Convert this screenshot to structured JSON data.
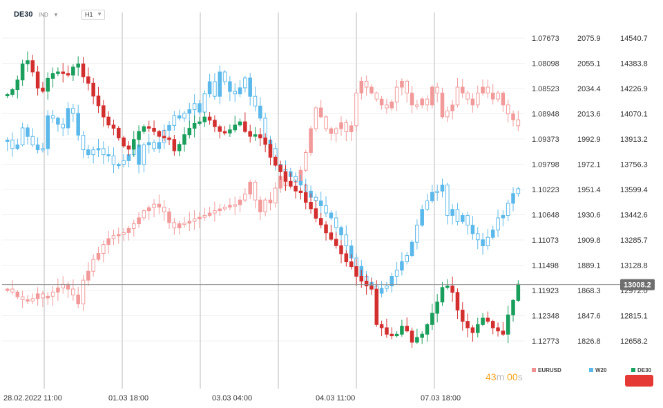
{
  "header": {
    "symbol": "DE30",
    "mode": "IND",
    "timeframe": "H1"
  },
  "timer": {
    "minutes": "43",
    "minutes_unit": "m",
    "seconds": "00",
    "seconds_unit": "s"
  },
  "legend": [
    {
      "name": "EURUSD",
      "color": "#f09090"
    },
    {
      "name": "W20",
      "color": "#5bb8ea"
    },
    {
      "name": "DE30",
      "color": "#1aa260"
    }
  ],
  "colors": {
    "de30_up": "#1a9e5c",
    "de30_down": "#d32f2f",
    "w20": "#5bb8ea",
    "eurusd": "#f29a9a",
    "current_price_bg": "#6e6e6e",
    "alert_button": "#e53935"
  },
  "chart_data": {
    "type": "candlestick",
    "xlabel": "",
    "x_tick_labels": [
      "28.02.2022  11:00",
      "01.03  18:00",
      "03.03  04:00",
      "04.03  11:00",
      "07.03  18:00"
    ],
    "axes": {
      "EURUSD": {
        "inverted": true,
        "range": [
          1.07673,
          1.12773
        ],
        "tick_labels": [
          "1.07673",
          "1.08098",
          "1.08523",
          "1.08948",
          "1.09373",
          "1.09798",
          "1.10223",
          "1.10648",
          "1.11073",
          "1.11498",
          "1.11923",
          "1.12348",
          "1.12773"
        ]
      },
      "W20": {
        "range": [
          1826.8,
          2075.9
        ],
        "tick_labels": [
          "2075.9",
          "2055.1",
          "2034.4",
          "2013.6",
          "1992.9",
          "1972.1",
          "1951.4",
          "1930.6",
          "1909.8",
          "1889.1",
          "1868.3",
          "1847.6",
          "1826.8"
        ]
      },
      "DE30": {
        "range": [
          12658.2,
          14540.7
        ],
        "tick_labels": [
          "14540.7",
          "14383.8",
          "14226.9",
          "14070.1",
          "13913.2",
          "13756.3",
          "13599.4",
          "13442.6",
          "13285.7",
          "13128.8",
          "12972.0",
          "12815.1",
          "12658.2"
        ]
      }
    },
    "current_price": {
      "series": "DE30",
      "value": 13008.2,
      "label": "13008.2"
    },
    "grid": true,
    "legend_position": "bottom-right",
    "series": [
      {
        "name": "DE30",
        "axis": "DE30",
        "closes": [
          14190,
          14220,
          14280,
          14380,
          14400,
          14330,
          14230,
          14210,
          14290,
          14320,
          14330,
          14320,
          14310,
          14360,
          14380,
          14300,
          14260,
          14180,
          14120,
          14050,
          14000,
          13980,
          13920,
          13870,
          13850,
          13910,
          13960,
          13990,
          13980,
          13960,
          13930,
          13920,
          13910,
          13840,
          13880,
          13940,
          13980,
          14010,
          14020,
          14050,
          14030,
          13990,
          13960,
          13950,
          13970,
          14000,
          14020,
          13960,
          13930,
          13940,
          13920,
          13880,
          13800,
          13750,
          13710,
          13650,
          13620,
          13590,
          13580,
          13520,
          13480,
          13420,
          13380,
          13330,
          13290,
          13250,
          13200,
          13150,
          13120,
          13060,
          13030,
          13000,
          12980,
          12760,
          12740,
          12700,
          12690,
          12700,
          12750,
          12720,
          12650,
          12680,
          12700,
          12760,
          12830,
          12900,
          12990,
          13000,
          12960,
          12850,
          12780,
          12740,
          12710,
          12760,
          12800,
          12780,
          12740,
          12720,
          12700,
          12820,
          12910,
          13010
        ]
      },
      {
        "name": "W20",
        "axis": "W20",
        "closes": [
          1992,
          1985,
          1988,
          2002,
          1995,
          1988,
          1984,
          1985,
          2012,
          2010,
          2005,
          2002,
          2018,
          2014,
          1996,
          1984,
          1980,
          1984,
          1985,
          1980,
          1979,
          1972,
          1972,
          1975,
          1980,
          1988,
          1972,
          1988,
          1990,
          1985,
          1990,
          2000,
          2004,
          2012,
          2010,
          2014,
          2017,
          2022,
          2015,
          2030,
          2040,
          2028,
          2048,
          2040,
          2032,
          2030,
          2035,
          2043,
          2028,
          2020,
          2010,
          1992,
          1985,
          1972,
          1968,
          1966,
          1962,
          1958,
          1955,
          1950,
          1945,
          1942,
          1938,
          1932,
          1928,
          1920,
          1914,
          1905,
          1895,
          1888,
          1880,
          1875,
          1872,
          1866,
          1870,
          1872,
          1880,
          1885,
          1892,
          1897,
          1908,
          1922,
          1935,
          1942,
          1949,
          1950,
          1955,
          1930,
          1935,
          1925,
          1930,
          1922,
          1915,
          1910,
          1905,
          1912,
          1918,
          1928,
          1930,
          1940,
          1948,
          1952
        ]
      },
      {
        "name": "EURUSD",
        "axis": "EURUSD",
        "closes": [
          1.119,
          1.1195,
          1.1203,
          1.1208,
          1.121,
          1.1206,
          1.1198,
          1.1205,
          1.1202,
          1.1195,
          1.1188,
          1.1182,
          1.119,
          1.12,
          1.1215,
          1.1175,
          1.116,
          1.114,
          1.113,
          1.1115,
          1.1105,
          1.11,
          1.1098,
          1.1095,
          1.1088,
          1.108,
          1.107,
          1.1058,
          1.1053,
          1.1047,
          1.1052,
          1.106,
          1.1078,
          1.1087,
          1.108,
          1.1079,
          1.1076,
          1.1072,
          1.1069,
          1.1066,
          1.1062,
          1.1058,
          1.1055,
          1.1052,
          1.1049,
          1.1048,
          1.104,
          1.103,
          1.101,
          1.104,
          1.106,
          1.104,
          1.1045,
          1.102,
          1.1,
          1.1016,
          1.101,
          1.1008,
          1.099,
          1.096,
          1.092,
          1.0885,
          1.09,
          1.092,
          1.0928,
          1.092,
          1.091,
          1.0925,
          1.0915,
          1.086,
          1.084,
          1.085,
          1.086,
          1.087,
          1.088,
          1.0885,
          1.0875,
          1.085,
          1.084,
          1.086,
          1.088,
          1.088,
          1.087,
          1.088,
          1.085,
          1.086,
          1.09,
          1.089,
          1.088,
          1.085,
          1.086,
          1.087,
          1.088,
          1.086,
          1.085,
          1.086,
          1.087,
          1.086,
          1.088,
          1.0895,
          1.0905,
          1.0915
        ]
      }
    ]
  }
}
